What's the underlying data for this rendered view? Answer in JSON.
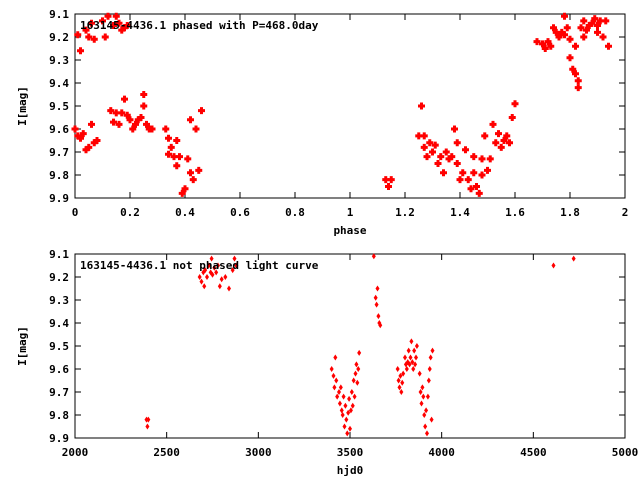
{
  "chart_data": [
    {
      "type": "scatter",
      "title": "163145-4436.1 phased with P=468.0day",
      "xlabel": "phase",
      "ylabel": "I[mag]",
      "xlim": [
        0,
        2
      ],
      "ylim": [
        9.9,
        9.1
      ],
      "y_inverted": true,
      "grid": false,
      "xticks": [
        "0",
        "0.2",
        "0.4",
        "0.6",
        "0.8",
        "1",
        "1.2",
        "1.4",
        "1.6",
        "1.8",
        "2"
      ],
      "yticks": [
        "9.1",
        "9.2",
        "9.3",
        "9.4",
        "9.5",
        "9.6",
        "9.7",
        "9.8",
        "9.9"
      ],
      "series": [
        {
          "color": "#ff0000",
          "marker": "star",
          "points": [
            [
              0.01,
              9.19
            ],
            [
              0.02,
              9.26
            ],
            [
              0.04,
              9.17
            ],
            [
              0.05,
              9.2
            ],
            [
              0.06,
              9.14
            ],
            [
              0.07,
              9.21
            ],
            [
              0.1,
              9.13
            ],
            [
              0.11,
              9.2
            ],
            [
              0.12,
              9.11
            ],
            [
              0.14,
              9.15
            ],
            [
              0.15,
              9.11
            ],
            [
              0.16,
              9.14
            ],
            [
              0.17,
              9.17
            ],
            [
              0.18,
              9.16
            ],
            [
              0.19,
              9.15
            ],
            [
              0.0,
              9.6
            ],
            [
              0.01,
              9.63
            ],
            [
              0.02,
              9.64
            ],
            [
              0.03,
              9.62
            ],
            [
              0.04,
              9.69
            ],
            [
              0.05,
              9.68
            ],
            [
              0.06,
              9.58
            ],
            [
              0.07,
              9.66
            ],
            [
              0.08,
              9.65
            ],
            [
              0.13,
              9.52
            ],
            [
              0.14,
              9.57
            ],
            [
              0.15,
              9.53
            ],
            [
              0.16,
              9.58
            ],
            [
              0.17,
              9.53
            ],
            [
              0.18,
              9.47
            ],
            [
              0.19,
              9.54
            ],
            [
              0.2,
              9.56
            ],
            [
              0.21,
              9.6
            ],
            [
              0.22,
              9.58
            ],
            [
              0.23,
              9.56
            ],
            [
              0.24,
              9.55
            ],
            [
              0.25,
              9.5
            ],
            [
              0.25,
              9.45
            ],
            [
              0.26,
              9.58
            ],
            [
              0.27,
              9.6
            ],
            [
              0.28,
              9.6
            ],
            [
              0.33,
              9.6
            ],
            [
              0.34,
              9.64
            ],
            [
              0.34,
              9.71
            ],
            [
              0.35,
              9.68
            ],
            [
              0.36,
              9.72
            ],
            [
              0.37,
              9.65
            ],
            [
              0.37,
              9.76
            ],
            [
              0.38,
              9.72
            ],
            [
              0.39,
              9.88
            ],
            [
              0.4,
              9.86
            ],
            [
              0.41,
              9.73
            ],
            [
              0.42,
              9.79
            ],
            [
              0.42,
              9.56
            ],
            [
              0.43,
              9.82
            ],
            [
              0.44,
              9.6
            ],
            [
              0.45,
              9.78
            ],
            [
              0.46,
              9.52
            ],
            [
              1.13,
              9.82
            ],
            [
              1.14,
              9.85
            ],
            [
              1.15,
              9.82
            ],
            [
              1.25,
              9.63
            ],
            [
              1.26,
              9.5
            ],
            [
              1.27,
              9.63
            ],
            [
              1.27,
              9.68
            ],
            [
              1.28,
              9.72
            ],
            [
              1.29,
              9.66
            ],
            [
              1.3,
              9.7
            ],
            [
              1.31,
              9.67
            ],
            [
              1.32,
              9.75
            ],
            [
              1.33,
              9.72
            ],
            [
              1.34,
              9.79
            ],
            [
              1.35,
              9.7
            ],
            [
              1.36,
              9.73
            ],
            [
              1.37,
              9.72
            ],
            [
              1.38,
              9.6
            ],
            [
              1.39,
              9.75
            ],
            [
              1.39,
              9.66
            ],
            [
              1.4,
              9.82
            ],
            [
              1.41,
              9.79
            ],
            [
              1.42,
              9.69
            ],
            [
              1.43,
              9.82
            ],
            [
              1.44,
              9.86
            ],
            [
              1.45,
              9.79
            ],
            [
              1.45,
              9.72
            ],
            [
              1.46,
              9.85
            ],
            [
              1.47,
              9.88
            ],
            [
              1.48,
              9.8
            ],
            [
              1.48,
              9.73
            ],
            [
              1.49,
              9.63
            ],
            [
              1.5,
              9.78
            ],
            [
              1.51,
              9.73
            ],
            [
              1.52,
              9.58
            ],
            [
              1.53,
              9.66
            ],
            [
              1.54,
              9.62
            ],
            [
              1.55,
              9.68
            ],
            [
              1.56,
              9.65
            ],
            [
              1.57,
              9.63
            ],
            [
              1.58,
              9.66
            ],
            [
              1.59,
              9.55
            ],
            [
              1.6,
              9.49
            ],
            [
              1.68,
              9.22
            ],
            [
              1.7,
              9.23
            ],
            [
              1.71,
              9.25
            ],
            [
              1.72,
              9.22
            ],
            [
              1.73,
              9.24
            ],
            [
              1.74,
              9.16
            ],
            [
              1.75,
              9.18
            ],
            [
              1.76,
              9.2
            ],
            [
              1.77,
              9.18
            ],
            [
              1.78,
              9.11
            ],
            [
              1.78,
              9.19
            ],
            [
              1.79,
              9.16
            ],
            [
              1.8,
              9.29
            ],
            [
              1.8,
              9.21
            ],
            [
              1.81,
              9.34
            ],
            [
              1.82,
              9.24
            ],
            [
              1.82,
              9.36
            ],
            [
              1.83,
              9.39
            ],
            [
              1.83,
              9.42
            ],
            [
              1.84,
              9.16
            ],
            [
              1.85,
              9.2
            ],
            [
              1.85,
              9.13
            ],
            [
              1.86,
              9.17
            ],
            [
              1.87,
              9.15
            ],
            [
              1.88,
              9.14
            ],
            [
              1.89,
              9.12
            ],
            [
              1.9,
              9.15
            ],
            [
              1.9,
              9.18
            ],
            [
              1.91,
              9.13
            ],
            [
              1.92,
              9.2
            ],
            [
              1.93,
              9.13
            ],
            [
              1.94,
              9.24
            ]
          ]
        }
      ]
    },
    {
      "type": "scatter",
      "title": "163145-4436.1 not phased light curve",
      "xlabel": "hjd0",
      "ylabel": "I[mag]",
      "xlim": [
        2000,
        5000
      ],
      "ylim": [
        9.9,
        9.1
      ],
      "y_inverted": true,
      "grid": false,
      "xticks": [
        "2000",
        "2500",
        "3000",
        "3500",
        "4000",
        "4500",
        "5000"
      ],
      "yticks": [
        "9.1",
        "9.2",
        "9.3",
        "9.4",
        "9.5",
        "9.6",
        "9.7",
        "9.8",
        "9.9"
      ],
      "series": [
        {
          "color": "#ff0000",
          "marker": "diamond",
          "points": [
            [
              2390,
              9.82
            ],
            [
              2395,
              9.85
            ],
            [
              2400,
              9.82
            ],
            [
              2680,
              9.2
            ],
            [
              2690,
              9.22
            ],
            [
              2700,
              9.18
            ],
            [
              2705,
              9.24
            ],
            [
              2710,
              9.17
            ],
            [
              2720,
              9.2
            ],
            [
              2730,
              9.15
            ],
            [
              2740,
              9.18
            ],
            [
              2745,
              9.12
            ],
            [
              2750,
              9.19
            ],
            [
              2760,
              9.16
            ],
            [
              2770,
              9.18
            ],
            [
              2780,
              9.15
            ],
            [
              2790,
              9.24
            ],
            [
              2800,
              9.21
            ],
            [
              2820,
              9.2
            ],
            [
              2840,
              9.25
            ],
            [
              2860,
              9.17
            ],
            [
              2870,
              9.12
            ],
            [
              2880,
              9.15
            ],
            [
              3400,
              9.6
            ],
            [
              3410,
              9.63
            ],
            [
              3415,
              9.68
            ],
            [
              3420,
              9.55
            ],
            [
              3425,
              9.65
            ],
            [
              3430,
              9.72
            ],
            [
              3440,
              9.7
            ],
            [
              3445,
              9.75
            ],
            [
              3450,
              9.68
            ],
            [
              3455,
              9.78
            ],
            [
              3460,
              9.8
            ],
            [
              3465,
              9.72
            ],
            [
              3470,
              9.85
            ],
            [
              3475,
              9.76
            ],
            [
              3480,
              9.82
            ],
            [
              3485,
              9.88
            ],
            [
              3490,
              9.79
            ],
            [
              3495,
              9.73
            ],
            [
              3500,
              9.86
            ],
            [
              3505,
              9.78
            ],
            [
              3510,
              9.7
            ],
            [
              3515,
              9.76
            ],
            [
              3520,
              9.65
            ],
            [
              3525,
              9.72
            ],
            [
              3530,
              9.62
            ],
            [
              3535,
              9.58
            ],
            [
              3540,
              9.66
            ],
            [
              3545,
              9.6
            ],
            [
              3550,
              9.53
            ],
            [
              3630,
              9.11
            ],
            [
              3640,
              9.29
            ],
            [
              3645,
              9.32
            ],
            [
              3650,
              9.25
            ],
            [
              3655,
              9.37
            ],
            [
              3660,
              9.4
            ],
            [
              3665,
              9.41
            ],
            [
              3760,
              9.6
            ],
            [
              3765,
              9.65
            ],
            [
              3770,
              9.68
            ],
            [
              3775,
              9.63
            ],
            [
              3780,
              9.7
            ],
            [
              3785,
              9.66
            ],
            [
              3790,
              9.62
            ],
            [
              3800,
              9.55
            ],
            [
              3805,
              9.58
            ],
            [
              3810,
              9.6
            ],
            [
              3815,
              9.57
            ],
            [
              3820,
              9.52
            ],
            [
              3825,
              9.58
            ],
            [
              3830,
              9.55
            ],
            [
              3835,
              9.48
            ],
            [
              3840,
              9.57
            ],
            [
              3845,
              9.6
            ],
            [
              3850,
              9.52
            ],
            [
              3855,
              9.58
            ],
            [
              3860,
              9.55
            ],
            [
              3865,
              9.5
            ],
            [
              3880,
              9.62
            ],
            [
              3885,
              9.7
            ],
            [
              3890,
              9.75
            ],
            [
              3895,
              9.68
            ],
            [
              3900,
              9.72
            ],
            [
              3905,
              9.8
            ],
            [
              3910,
              9.85
            ],
            [
              3915,
              9.78
            ],
            [
              3920,
              9.88
            ],
            [
              3925,
              9.72
            ],
            [
              3930,
              9.65
            ],
            [
              3935,
              9.6
            ],
            [
              3940,
              9.55
            ],
            [
              3945,
              9.82
            ],
            [
              3950,
              9.52
            ],
            [
              4610,
              9.15
            ],
            [
              4720,
              9.12
            ]
          ]
        }
      ]
    }
  ]
}
